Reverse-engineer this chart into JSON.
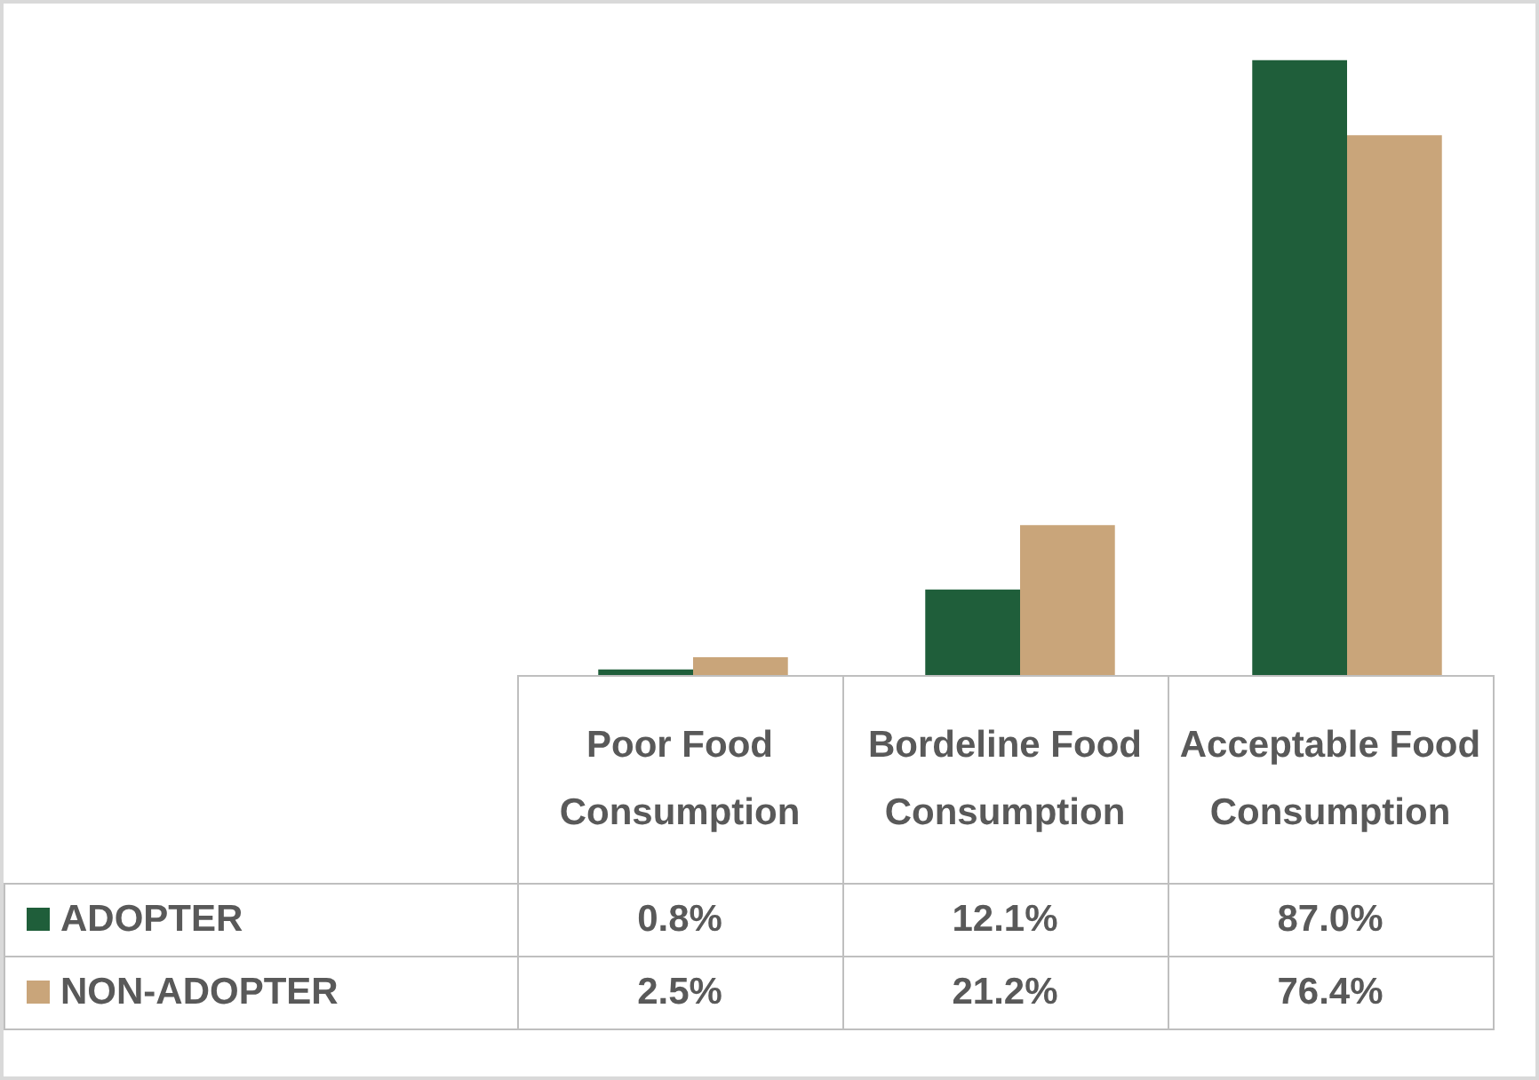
{
  "chart_data": {
    "type": "bar",
    "categories": [
      "Poor Food Consumption",
      "Bordeline Food Consumption",
      "Acceptable Food Consumption"
    ],
    "series": [
      {
        "name": "ADOPTER",
        "color": "#1f5e3a",
        "values": [
          0.8,
          12.1,
          87.0
        ],
        "value_labels": [
          "0.8%",
          "12.1%",
          "87.0%"
        ]
      },
      {
        "name": "NON-ADOPTER",
        "color": "#c9a57a",
        "values": [
          2.5,
          21.2,
          76.4
        ],
        "value_labels": [
          "2.5%",
          "21.2%",
          "76.4%"
        ]
      }
    ],
    "data_labels": true,
    "legend": "bottom left"
  }
}
